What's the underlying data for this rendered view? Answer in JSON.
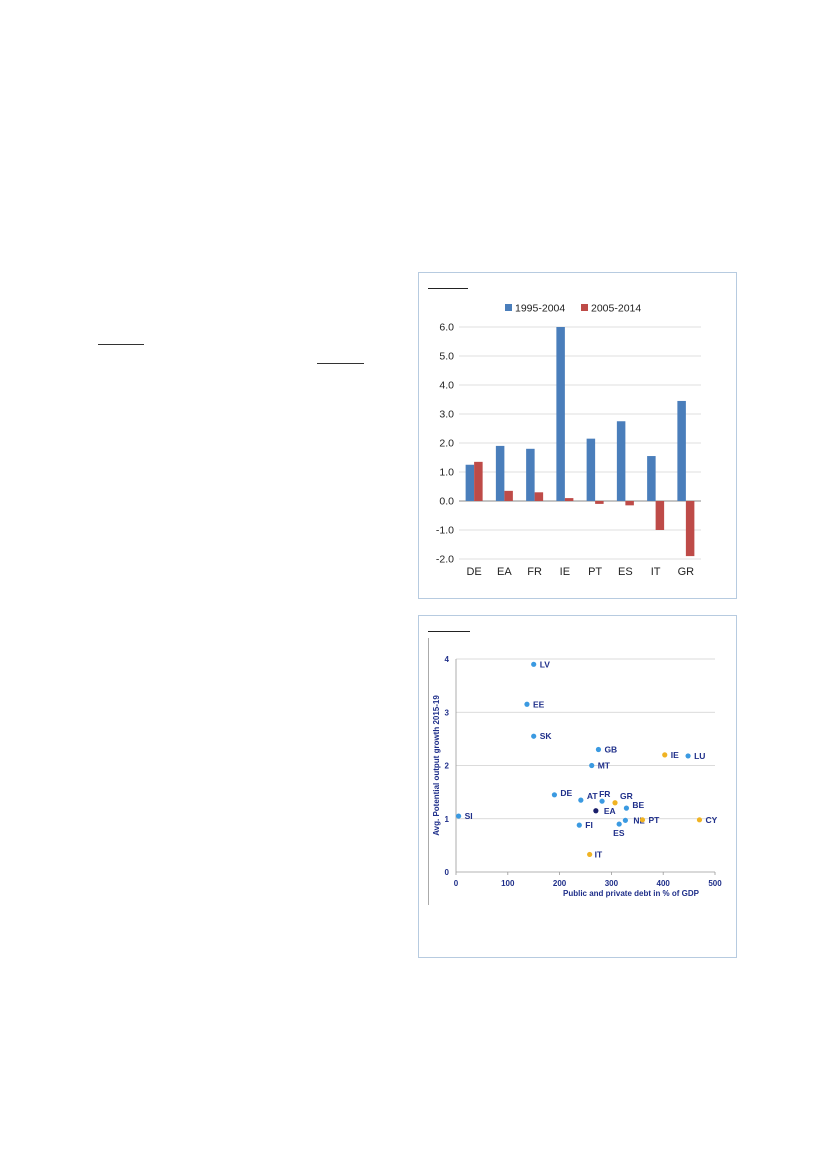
{
  "charts": [
    {
      "chart_data": {
        "type": "bar",
        "title": "",
        "xlabel": "",
        "ylabel": "",
        "categories": [
          "DE",
          "EA",
          "FR",
          "IE",
          "PT",
          "ES",
          "IT",
          "GR"
        ],
        "series": [
          {
            "name": "1995-2004",
            "color": "#4a7ebb",
            "values": [
              1.25,
              1.9,
              1.8,
              6.0,
              2.15,
              2.75,
              1.55,
              3.45
            ]
          },
          {
            "name": "2005-2014",
            "color": "#be4b48",
            "values": [
              1.35,
              0.35,
              0.3,
              0.1,
              -0.1,
              -0.15,
              -1.0,
              -1.9
            ]
          }
        ],
        "ylim": [
          -2.0,
          6.0
        ],
        "yticks": [
          "6.0",
          "5.0",
          "4.0",
          "3.0",
          "2.0",
          "1.0",
          "0.0",
          "-1.0",
          "-2.0"
        ],
        "ytick_values": [
          6,
          5,
          4,
          3,
          2,
          1,
          0,
          -1,
          -2
        ],
        "grid": true,
        "legend_position": "top-center"
      }
    },
    {
      "chart_data": {
        "type": "scatter",
        "title": "",
        "xlabel": "Public and private debt in % of GDP",
        "ylabel": "Avg. Potential output growth 2015-19",
        "xlim": [
          0,
          500
        ],
        "ylim": [
          0,
          4
        ],
        "xticks": [
          "0",
          "100",
          "200",
          "300",
          "400",
          "500"
        ],
        "xtick_values": [
          0,
          100,
          200,
          300,
          400,
          500
        ],
        "yticks": [
          "4",
          "3",
          "2",
          "1",
          "0"
        ],
        "ytick_values": [
          4,
          3,
          2,
          1,
          0
        ],
        "grid": true,
        "colors": {
          "default": "#3b9ae1",
          "highlight": "#f0b323",
          "aggregate": "#1a1f6b"
        },
        "points": [
          {
            "label": "LV",
            "x": 150,
            "y": 3.9,
            "group": "default"
          },
          {
            "label": "EE",
            "x": 137,
            "y": 3.15,
            "group": "default"
          },
          {
            "label": "SK",
            "x": 150,
            "y": 2.55,
            "group": "default"
          },
          {
            "label": "GB",
            "x": 275,
            "y": 2.3,
            "group": "default"
          },
          {
            "label": "IE",
            "x": 403,
            "y": 2.2,
            "group": "highlight"
          },
          {
            "label": "LU",
            "x": 448,
            "y": 2.18,
            "group": "default"
          },
          {
            "label": "MT",
            "x": 262,
            "y": 2.0,
            "group": "default"
          },
          {
            "label": "DE",
            "x": 190,
            "y": 1.45,
            "group": "default"
          },
          {
            "label": "AT",
            "x": 241,
            "y": 1.35,
            "group": "default"
          },
          {
            "label": "FR",
            "x": 282,
            "y": 1.33,
            "group": "default"
          },
          {
            "label": "GR",
            "x": 307,
            "y": 1.3,
            "group": "highlight"
          },
          {
            "label": "EA",
            "x": 270,
            "y": 1.15,
            "group": "aggregate"
          },
          {
            "label": "BE",
            "x": 329,
            "y": 1.2,
            "group": "default"
          },
          {
            "label": "SI",
            "x": 5,
            "y": 1.05,
            "group": "default"
          },
          {
            "label": "NL",
            "x": 327,
            "y": 0.97,
            "group": "default"
          },
          {
            "label": "PT",
            "x": 360,
            "y": 0.98,
            "group": "highlight"
          },
          {
            "label": "CY",
            "x": 470,
            "y": 0.98,
            "group": "highlight"
          },
          {
            "label": "FI",
            "x": 238,
            "y": 0.88,
            "group": "default"
          },
          {
            "label": "ES",
            "x": 315,
            "y": 0.9,
            "group": "default"
          },
          {
            "label": "IT",
            "x": 258,
            "y": 0.33,
            "group": "highlight"
          }
        ]
      }
    }
  ]
}
